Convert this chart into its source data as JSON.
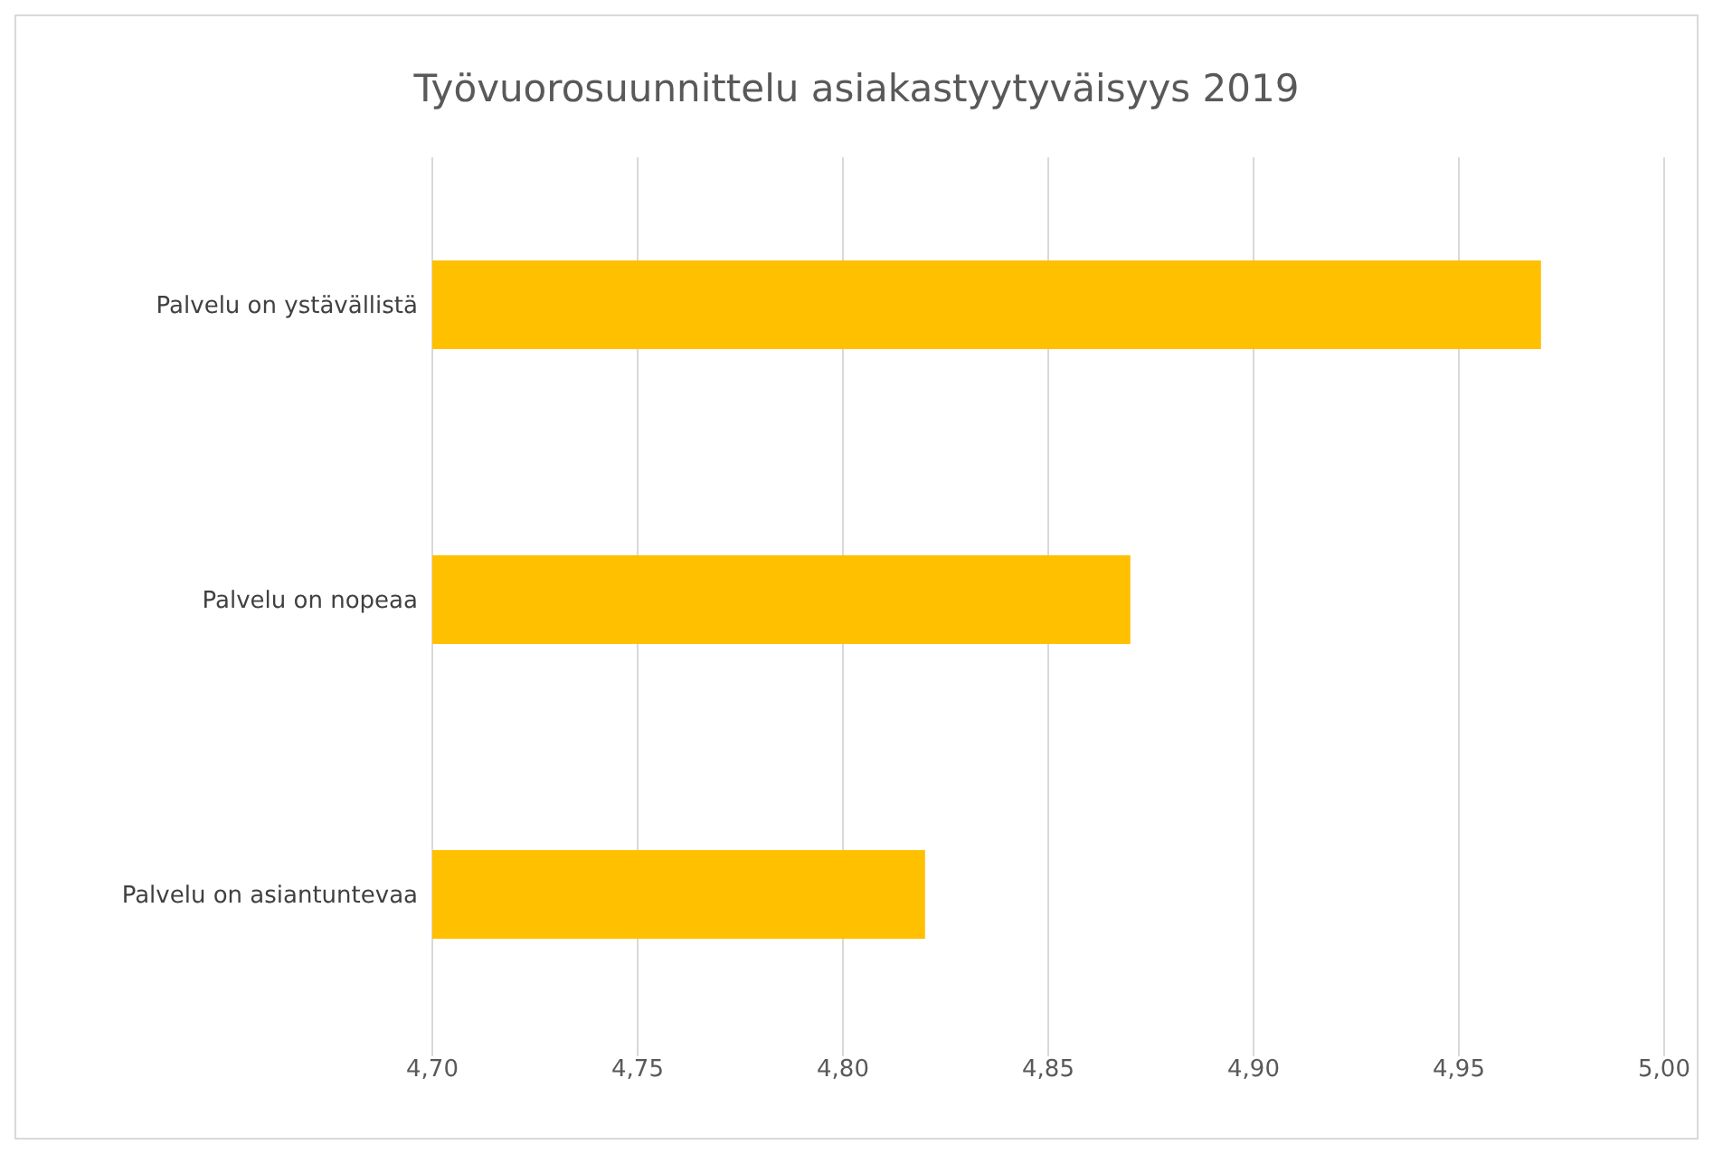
{
  "chart_data": {
    "type": "bar",
    "orientation": "horizontal",
    "title": "Työvuorosuunnittelu asiakastyytyväisyys 2019",
    "categories": [
      "Palvelu on ystävällistä",
      "Palvelu on nopeaa",
      "Palvelu on asiantuntevaa"
    ],
    "values": [
      4.97,
      4.87,
      4.82
    ],
    "color": "#ffc000",
    "xlim": [
      4.7,
      5.0
    ],
    "xticks": [
      {
        "value": 4.7,
        "label": "4,70"
      },
      {
        "value": 4.75,
        "label": "4,75"
      },
      {
        "value": 4.8,
        "label": "4,80"
      },
      {
        "value": 4.85,
        "label": "4,85"
      },
      {
        "value": 4.9,
        "label": "4,90"
      },
      {
        "value": 4.95,
        "label": "4,95"
      },
      {
        "value": 5.0,
        "label": "5,00"
      }
    ],
    "grid": "x"
  }
}
